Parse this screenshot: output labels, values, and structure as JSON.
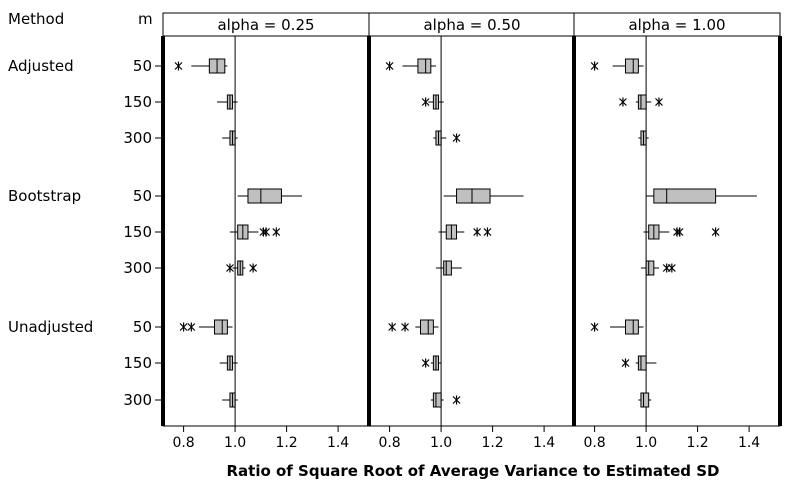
{
  "chart_data": {
    "type": "boxplot",
    "xlabel": "Ratio of Square Root of Average Variance to Estimated SD",
    "row_headers": {
      "method": "Method",
      "m": "m"
    },
    "xlim": [
      0.72,
      1.52
    ],
    "xticks": [
      0.8,
      1.0,
      1.2,
      1.4
    ],
    "xtick_labels": [
      "0.8",
      "1.0",
      "1.2",
      "1.4"
    ],
    "reference_line": 1.0,
    "box_fill": "#c0c0c0",
    "groups": [
      {
        "method": "Adjusted",
        "m": [
          "50",
          "150",
          "300"
        ]
      },
      {
        "method": "Bootstrap",
        "m": [
          "50",
          "150",
          "300"
        ]
      },
      {
        "method": "Unadjusted",
        "m": [
          "50",
          "150",
          "300"
        ]
      }
    ],
    "panels": [
      {
        "title": "alpha = 0.25",
        "boxes": [
          {
            "method": "Adjusted",
            "m": "50",
            "whislo": 0.83,
            "q1": 0.9,
            "med": 0.93,
            "q3": 0.96,
            "whishi": 0.97,
            "outliers": [
              0.78
            ]
          },
          {
            "method": "Adjusted",
            "m": "150",
            "whislo": 0.93,
            "q1": 0.97,
            "med": 0.98,
            "q3": 0.99,
            "whishi": 1.01,
            "outliers": []
          },
          {
            "method": "Adjusted",
            "m": "300",
            "whislo": 0.95,
            "q1": 0.98,
            "med": 0.99,
            "q3": 1.0,
            "whishi": 1.01,
            "outliers": []
          },
          {
            "method": "Bootstrap",
            "m": "50",
            "whislo": 1.01,
            "q1": 1.05,
            "med": 1.1,
            "q3": 1.18,
            "whishi": 1.26,
            "outliers": []
          },
          {
            "method": "Bootstrap",
            "m": "150",
            "whislo": 0.98,
            "q1": 1.01,
            "med": 1.03,
            "q3": 1.05,
            "whishi": 1.09,
            "outliers": [
              1.11,
              1.12,
              1.16
            ]
          },
          {
            "method": "Bootstrap",
            "m": "300",
            "whislo": 0.99,
            "q1": 1.01,
            "med": 1.02,
            "q3": 1.03,
            "whishi": 1.04,
            "outliers": [
              0.98,
              1.07
            ]
          },
          {
            "method": "Unadjusted",
            "m": "50",
            "whislo": 0.86,
            "q1": 0.92,
            "med": 0.95,
            "q3": 0.97,
            "whishi": 0.99,
            "outliers": [
              0.8,
              0.83
            ]
          },
          {
            "method": "Unadjusted",
            "m": "150",
            "whislo": 0.94,
            "q1": 0.97,
            "med": 0.98,
            "q3": 0.99,
            "whishi": 1.01,
            "outliers": []
          },
          {
            "method": "Unadjusted",
            "m": "300",
            "whislo": 0.95,
            "q1": 0.98,
            "med": 0.99,
            "q3": 1.0,
            "whishi": 1.01,
            "outliers": []
          }
        ]
      },
      {
        "title": "alpha = 0.50",
        "boxes": [
          {
            "method": "Adjusted",
            "m": "50",
            "whislo": 0.85,
            "q1": 0.91,
            "med": 0.94,
            "q3": 0.96,
            "whishi": 0.98,
            "outliers": [
              0.8
            ]
          },
          {
            "method": "Adjusted",
            "m": "150",
            "whislo": 0.95,
            "q1": 0.97,
            "med": 0.98,
            "q3": 0.99,
            "whishi": 1.01,
            "outliers": [
              0.94
            ]
          },
          {
            "method": "Adjusted",
            "m": "300",
            "whislo": 0.97,
            "q1": 0.98,
            "med": 0.99,
            "q3": 1.0,
            "whishi": 1.02,
            "outliers": [
              1.06
            ]
          },
          {
            "method": "Bootstrap",
            "m": "50",
            "whislo": 1.01,
            "q1": 1.06,
            "med": 1.12,
            "q3": 1.19,
            "whishi": 1.32,
            "outliers": []
          },
          {
            "method": "Bootstrap",
            "m": "150",
            "whislo": 0.99,
            "q1": 1.02,
            "med": 1.04,
            "q3": 1.06,
            "whishi": 1.09,
            "outliers": [
              1.14,
              1.18
            ]
          },
          {
            "method": "Bootstrap",
            "m": "300",
            "whislo": 0.98,
            "q1": 1.01,
            "med": 1.02,
            "q3": 1.04,
            "whishi": 1.08,
            "outliers": []
          },
          {
            "method": "Unadjusted",
            "m": "50",
            "whislo": 0.9,
            "q1": 0.92,
            "med": 0.95,
            "q3": 0.97,
            "whishi": 0.99,
            "outliers": [
              0.81,
              0.86
            ]
          },
          {
            "method": "Unadjusted",
            "m": "150",
            "whislo": 0.96,
            "q1": 0.97,
            "med": 0.98,
            "q3": 0.99,
            "whishi": 1.0,
            "outliers": [
              0.94
            ]
          },
          {
            "method": "Unadjusted",
            "m": "300",
            "whislo": 0.96,
            "q1": 0.97,
            "med": 0.98,
            "q3": 1.0,
            "whishi": 1.01,
            "outliers": [
              1.06
            ]
          }
        ]
      },
      {
        "title": "alpha = 1.00",
        "boxes": [
          {
            "method": "Adjusted",
            "m": "50",
            "whislo": 0.87,
            "q1": 0.92,
            "med": 0.95,
            "q3": 0.97,
            "whishi": 0.99,
            "outliers": [
              0.8
            ]
          },
          {
            "method": "Adjusted",
            "m": "150",
            "whislo": 0.96,
            "q1": 0.97,
            "med": 0.98,
            "q3": 1.0,
            "whishi": 1.02,
            "outliers": [
              0.91,
              1.05
            ]
          },
          {
            "method": "Adjusted",
            "m": "300",
            "whislo": 0.97,
            "q1": 0.98,
            "med": 0.99,
            "q3": 1.0,
            "whishi": 1.01,
            "outliers": []
          },
          {
            "method": "Bootstrap",
            "m": "50",
            "whislo": 1.0,
            "q1": 1.03,
            "med": 1.08,
            "q3": 1.27,
            "whishi": 1.43,
            "outliers": []
          },
          {
            "method": "Bootstrap",
            "m": "150",
            "whislo": 0.99,
            "q1": 1.01,
            "med": 1.03,
            "q3": 1.05,
            "whishi": 1.09,
            "outliers": [
              1.12,
              1.13,
              1.27
            ]
          },
          {
            "method": "Bootstrap",
            "m": "300",
            "whislo": 0.98,
            "q1": 1.0,
            "med": 1.01,
            "q3": 1.03,
            "whishi": 1.05,
            "outliers": [
              1.08,
              1.1
            ]
          },
          {
            "method": "Unadjusted",
            "m": "50",
            "whislo": 0.86,
            "q1": 0.92,
            "med": 0.95,
            "q3": 0.97,
            "whishi": 0.99,
            "outliers": [
              0.8
            ]
          },
          {
            "method": "Unadjusted",
            "m": "150",
            "whislo": 0.96,
            "q1": 0.97,
            "med": 0.98,
            "q3": 1.0,
            "whishi": 1.04,
            "outliers": [
              0.92
            ]
          },
          {
            "method": "Unadjusted",
            "m": "300",
            "whislo": 0.97,
            "q1": 0.98,
            "med": 0.99,
            "q3": 1.01,
            "whishi": 1.02,
            "outliers": []
          }
        ]
      }
    ]
  }
}
